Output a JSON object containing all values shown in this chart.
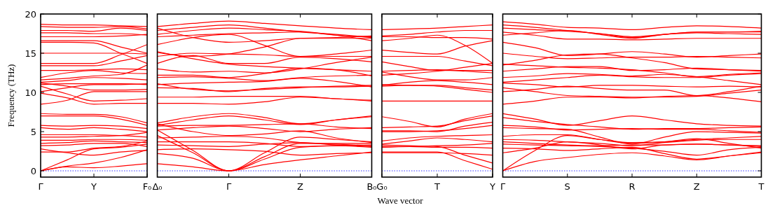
{
  "chart_data": [
    {
      "type": "line",
      "ylabel": "Frequency (THz)",
      "ylim": [
        -0.8,
        20
      ],
      "yticks": [
        0,
        5,
        10,
        15,
        20
      ],
      "categories": [
        "Γ",
        null,
        "Y",
        null,
        "F₀"
      ],
      "ref_lines": [
        {
          "axis": "y",
          "value": 0,
          "color": "#0000ff",
          "line_style": "dotted"
        }
      ],
      "series": [
        {
          "color": "#ff0000",
          "values": [
            18.7,
            18.6,
            18.6,
            18.5,
            18.4
          ]
        },
        {
          "color": "#ff0000",
          "values": [
            18.4,
            18.3,
            18.3,
            18.4,
            18.1
          ]
        },
        {
          "color": "#ff0000",
          "values": [
            17.9,
            17.9,
            17.8,
            18.2,
            17.9
          ]
        },
        {
          "color": "#ff0000",
          "values": [
            17.6,
            17.6,
            17.5,
            17.5,
            17.3
          ]
        },
        {
          "color": "#ff0000",
          "values": [
            17.1,
            17.1,
            17.1,
            17.2,
            17.4
          ]
        },
        {
          "color": "#ff0000",
          "values": [
            16.6,
            16.6,
            16.6,
            15.8,
            15.0
          ]
        },
        {
          "color": "#ff0000",
          "values": [
            16.4,
            16.4,
            16.3,
            15.0,
            13.7
          ]
        },
        {
          "color": "#ff0000",
          "values": [
            15.0,
            15.0,
            15.0,
            15.0,
            14.9
          ]
        },
        {
          "color": "#ff0000",
          "values": [
            13.7,
            13.7,
            13.7,
            14.8,
            16.1
          ]
        },
        {
          "color": "#ff0000",
          "values": [
            13.4,
            13.4,
            13.4,
            14.0,
            14.7
          ]
        },
        {
          "color": "#ff0000",
          "values": [
            12.8,
            12.8,
            12.9,
            13.0,
            12.9
          ]
        },
        {
          "color": "#ff0000",
          "values": [
            11.9,
            12.5,
            12.8,
            12.5,
            12.4
          ]
        },
        {
          "color": "#ff0000",
          "values": [
            11.6,
            11.8,
            12.1,
            12.3,
            13.5
          ]
        },
        {
          "color": "#ff0000",
          "values": [
            11.3,
            11.5,
            11.9,
            11.8,
            11.6
          ]
        },
        {
          "color": "#ff0000",
          "values": [
            11.0,
            11.1,
            11.1,
            11.1,
            11.0
          ]
        },
        {
          "color": "#ff0000",
          "values": [
            11.2,
            10.8,
            10.3,
            10.3,
            10.4
          ]
        },
        {
          "color": "#ff0000",
          "values": [
            10.1,
            10.6,
            11.0,
            11.0,
            11.1
          ]
        },
        {
          "color": "#ff0000",
          "values": [
            10.8,
            9.8,
            8.9,
            9.0,
            9.2
          ]
        },
        {
          "color": "#ff0000",
          "values": [
            8.5,
            9.0,
            10.1,
            10.1,
            10.1
          ]
        },
        {
          "color": "#ff0000",
          "values": [
            9.9,
            9.3,
            8.5,
            8.6,
            8.6
          ]
        },
        {
          "color": "#ff0000",
          "values": [
            7.3,
            7.2,
            7.2,
            6.9,
            6.1
          ]
        },
        {
          "color": "#ff0000",
          "values": [
            7.0,
            7.0,
            7.0,
            6.6,
            5.8
          ]
        },
        {
          "color": "#ff0000",
          "values": [
            5.8,
            5.7,
            5.8,
            5.7,
            5.4
          ]
        },
        {
          "color": "#ff0000",
          "values": [
            5.5,
            5.3,
            5.5,
            5.3,
            5.0
          ]
        },
        {
          "color": "#ff0000",
          "values": [
            4.6,
            4.6,
            4.6,
            4.5,
            4.3
          ]
        },
        {
          "color": "#ff0000",
          "values": [
            4.3,
            4.3,
            4.4,
            4.5,
            4.9
          ]
        },
        {
          "color": "#ff0000",
          "values": [
            3.9,
            3.9,
            4.0,
            4.0,
            3.9
          ]
        },
        {
          "color": "#ff0000",
          "values": [
            3.5,
            3.6,
            3.8,
            3.7,
            3.6
          ]
        },
        {
          "color": "#ff0000",
          "values": [
            3.2,
            3.3,
            3.5,
            3.5,
            3.1
          ]
        },
        {
          "color": "#ff0000",
          "values": [
            2.8,
            2.3,
            2.0,
            2.4,
            2.6
          ]
        },
        {
          "color": "#ff0000",
          "values": [
            2.4,
            2.4,
            2.9,
            3.1,
            3.8
          ]
        },
        {
          "color": "#ff0000",
          "values": [
            0,
            1.4,
            2.8,
            3.0,
            3.4
          ]
        },
        {
          "color": "#ff0000",
          "values": [
            0,
            0.6,
            1.0,
            1.7,
            2.7
          ]
        },
        {
          "color": "#ff0000",
          "values": [
            0,
            0.5,
            0.4,
            0.6,
            0.9
          ]
        }
      ]
    },
    {
      "type": "line",
      "tick_labels": "x",
      "ylim": [
        -0.8,
        20
      ],
      "categories": [
        "Δ₀",
        null,
        "Γ",
        null,
        "Z",
        null,
        "B₀"
      ],
      "ref_lines": [
        {
          "axis": "y",
          "value": 0,
          "color": "#0000ff",
          "line_style": "dotted"
        }
      ],
      "series": [
        {
          "color": "#ff0000",
          "values": [
            18.4,
            18.8,
            19.1,
            18.8,
            18.5,
            18.2,
            18.0
          ]
        },
        {
          "color": "#ff0000",
          "values": [
            17.9,
            18.3,
            18.6,
            18.2,
            17.7,
            17.4,
            17.0
          ]
        },
        {
          "color": "#ff0000",
          "values": [
            17.4,
            17.9,
            18.2,
            18.0,
            17.8,
            17.3,
            16.6
          ]
        },
        {
          "color": "#ff0000",
          "values": [
            17.1,
            17.3,
            17.5,
            17.6,
            17.7,
            17.3,
            17.1
          ]
        },
        {
          "color": "#ff0000",
          "values": [
            18.2,
            17.0,
            16.4,
            16.6,
            16.9,
            16.9,
            16.9
          ]
        },
        {
          "color": "#ff0000",
          "values": [
            16.1,
            17.0,
            17.4,
            16.0,
            14.6,
            14.9,
            15.4
          ]
        },
        {
          "color": "#ff0000",
          "values": [
            15.1,
            14.6,
            14.9,
            15.8,
            16.9,
            17.0,
            17.2
          ]
        },
        {
          "color": "#ff0000",
          "values": [
            14.6,
            15.0,
            14.9,
            14.8,
            14.6,
            14.6,
            14.6
          ]
        },
        {
          "color": "#ff0000",
          "values": [
            13.7,
            14.7,
            13.7,
            13.7,
            14.5,
            14.3,
            13.9
          ]
        },
        {
          "color": "#ff0000",
          "values": [
            15.2,
            14.3,
            13.6,
            13.3,
            13.1,
            12.9,
            12.7
          ]
        },
        {
          "color": "#ff0000",
          "values": [
            13.0,
            12.6,
            12.7,
            12.5,
            13.0,
            13.8,
            14.5
          ]
        },
        {
          "color": "#ff0000",
          "values": [
            12.2,
            12.2,
            11.9,
            12.4,
            13.1,
            12.9,
            12.1
          ]
        },
        {
          "color": "#ff0000",
          "values": [
            11.9,
            12.0,
            11.8,
            11.5,
            11.9,
            12.1,
            12.2
          ]
        },
        {
          "color": "#ff0000",
          "values": [
            11.0,
            11.2,
            11.3,
            11.4,
            11.8,
            11.4,
            10.7
          ]
        },
        {
          "color": "#ff0000",
          "values": [
            10.6,
            10.5,
            10.1,
            10.5,
            10.7,
            10.7,
            10.8
          ]
        },
        {
          "color": "#ff0000",
          "values": [
            11.1,
            10.4,
            10.2,
            10.4,
            10.6,
            10.8,
            10.9
          ]
        },
        {
          "color": "#ff0000",
          "values": [
            9.4,
            9.4,
            9.5,
            9.5,
            9.5,
            9.2,
            9.0
          ]
        },
        {
          "color": "#ff0000",
          "values": [
            8.6,
            8.6,
            8.5,
            8.8,
            9.4,
            9.2,
            8.9
          ]
        },
        {
          "color": "#ff0000",
          "values": [
            6.1,
            6.9,
            7.3,
            6.8,
            6.0,
            6.5,
            6.9
          ]
        },
        {
          "color": "#ff0000",
          "values": [
            5.8,
            6.5,
            7.0,
            6.5,
            5.9,
            6.5,
            7.0
          ]
        },
        {
          "color": "#ff0000",
          "values": [
            5.7,
            5.8,
            5.8,
            5.9,
            6.0,
            5.6,
            5.4
          ]
        },
        {
          "color": "#ff0000",
          "values": [
            5.2,
            5.5,
            5.7,
            5.4,
            5.0,
            5.3,
            5.5
          ]
        },
        {
          "color": "#ff0000",
          "values": [
            6.0,
            5.0,
            4.5,
            4.7,
            5.1,
            4.2,
            3.6
          ]
        },
        {
          "color": "#ff0000",
          "values": [
            4.2,
            4.3,
            4.4,
            4.2,
            3.6,
            3.4,
            3.2
          ]
        },
        {
          "color": "#ff0000",
          "values": [
            3.7,
            3.7,
            3.7,
            3.5,
            3.1,
            3.2,
            3.3
          ]
        },
        {
          "color": "#ff0000",
          "values": [
            3.3,
            3.2,
            3.1,
            3.4,
            3.6,
            3.3,
            3.1
          ]
        },
        {
          "color": "#ff0000",
          "values": [
            2.7,
            2.8,
            2.7,
            2.5,
            2.0,
            2.2,
            2.3
          ]
        },
        {
          "color": "#ff0000",
          "values": [
            2.2,
            1.6,
            0,
            0.8,
            1.4,
            1.9,
            2.4
          ]
        },
        {
          "color": "#ff0000",
          "values": [
            4.5,
            2.3,
            0,
            1.5,
            3.0,
            3.2,
            3.0
          ]
        },
        {
          "color": "#ff0000",
          "values": [
            0.9,
            0.5,
            0,
            1.8,
            3.5,
            3.5,
            3.5
          ]
        },
        {
          "color": "#ff0000",
          "values": [
            5.2,
            2.6,
            0,
            2.3,
            4.3,
            4.0,
            3.7
          ]
        }
      ]
    },
    {
      "type": "line",
      "tick_labels": "x",
      "xlabel": "Wave vector",
      "ylim": [
        -0.8,
        20
      ],
      "categories": [
        "G₀",
        null,
        "T",
        null,
        "Y"
      ],
      "ref_lines": [
        {
          "axis": "y",
          "value": 0,
          "color": "#0000ff",
          "line_style": "dotted"
        }
      ],
      "series": [
        {
          "color": "#ff0000",
          "values": [
            18.0,
            18.1,
            18.2,
            18.4,
            18.6
          ]
        },
        {
          "color": "#ff0000",
          "values": [
            17.2,
            17.4,
            17.7,
            17.9,
            17.9
          ]
        },
        {
          "color": "#ff0000",
          "values": [
            16.6,
            16.9,
            17.3,
            16.0,
            13.7
          ]
        },
        {
          "color": "#ff0000",
          "values": [
            17.1,
            17.1,
            17.0,
            17.0,
            16.8
          ]
        },
        {
          "color": "#ff0000",
          "values": [
            15.4,
            15.1,
            14.9,
            15.9,
            16.6
          ]
        },
        {
          "color": "#ff0000",
          "values": [
            14.6,
            14.6,
            14.6,
            14.0,
            13.4
          ]
        },
        {
          "color": "#ff0000",
          "values": [
            13.9,
            13.3,
            12.8,
            12.8,
            12.8
          ]
        },
        {
          "color": "#ff0000",
          "values": [
            12.7,
            12.8,
            12.9,
            12.7,
            12.5
          ]
        },
        {
          "color": "#ff0000",
          "values": [
            12.2,
            12.4,
            12.7,
            13.2,
            13.7
          ]
        },
        {
          "color": "#ff0000",
          "values": [
            12.6,
            12.0,
            11.6,
            11.6,
            11.9
          ]
        },
        {
          "color": "#ff0000",
          "values": [
            10.9,
            11.3,
            11.5,
            11.3,
            11.0
          ]
        },
        {
          "color": "#ff0000",
          "values": [
            10.8,
            10.9,
            10.9,
            10.6,
            10.3
          ]
        },
        {
          "color": "#ff0000",
          "values": [
            11.0,
            10.9,
            10.8,
            10.4,
            10.0
          ]
        },
        {
          "color": "#ff0000",
          "values": [
            8.9,
            8.9,
            8.9,
            8.9,
            8.9
          ]
        },
        {
          "color": "#ff0000",
          "values": [
            6.9,
            6.3,
            5.6,
            6.6,
            7.3
          ]
        },
        {
          "color": "#ff0000",
          "values": [
            5.5,
            5.6,
            5.7,
            6.4,
            7.0
          ]
        },
        {
          "color": "#ff0000",
          "values": [
            5.1,
            5.1,
            5.0,
            5.7,
            6.2
          ]
        },
        {
          "color": "#ff0000",
          "values": [
            5.0,
            5.0,
            5.1,
            5.4,
            5.8
          ]
        },
        {
          "color": "#ff0000",
          "values": [
            3.8,
            4.2,
            4.4,
            4.5,
            4.6
          ]
        },
        {
          "color": "#ff0000",
          "values": [
            3.4,
            3.8,
            4.2,
            4.0,
            3.7
          ]
        },
        {
          "color": "#ff0000",
          "values": [
            3.1,
            3.1,
            3.2,
            3.3,
            3.5
          ]
        },
        {
          "color": "#ff0000",
          "values": [
            3.0,
            3.1,
            3.0,
            3.0,
            2.9
          ]
        },
        {
          "color": "#ff0000",
          "values": [
            2.3,
            2.3,
            2.3,
            2.2,
            2.0
          ]
        },
        {
          "color": "#ff0000",
          "values": [
            3.3,
            3.2,
            3.1,
            2.0,
            1.0
          ]
        },
        {
          "color": "#ff0000",
          "values": [
            2.4,
            2.4,
            2.4,
            1.3,
            0.2
          ]
        }
      ]
    },
    {
      "type": "line",
      "tick_labels": "x",
      "ylim": [
        -0.8,
        20
      ],
      "yticks": [
        {
          "value": 0,
          "label": null
        },
        {
          "value": 5,
          "label": null
        },
        {
          "value": 10,
          "label": null
        },
        {
          "value": 15,
          "label": null
        },
        {
          "value": 20,
          "label": null
        }
      ],
      "categories": [
        "Γ",
        null,
        "S",
        null,
        "R",
        null,
        "Z",
        null,
        "T"
      ],
      "ref_lines": [
        {
          "axis": "y",
          "value": 0,
          "color": "#0000ff",
          "line_style": "dotted"
        }
      ],
      "series": [
        {
          "color": "#ff0000",
          "values": [
            19.0,
            18.7,
            18.3,
            18.2,
            18.0,
            18.3,
            18.5,
            18.4,
            18.2
          ]
        },
        {
          "color": "#ff0000",
          "values": [
            18.6,
            18.3,
            17.9,
            17.5,
            17.0,
            17.4,
            17.7,
            17.7,
            17.8
          ]
        },
        {
          "color": "#ff0000",
          "values": [
            18.2,
            18.0,
            17.8,
            17.5,
            17.1,
            17.4,
            17.6,
            17.5,
            17.4
          ]
        },
        {
          "color": "#ff0000",
          "values": [
            17.7,
            17.3,
            16.8,
            16.8,
            16.7,
            16.8,
            16.9,
            16.9,
            16.9
          ]
        },
        {
          "color": "#ff0000",
          "values": [
            17.3,
            17.6,
            17.9,
            17.4,
            16.9,
            17.4,
            17.7,
            17.7,
            17.7
          ]
        },
        {
          "color": "#ff0000",
          "values": [
            16.4,
            15.7,
            14.7,
            14.9,
            15.2,
            14.9,
            14.5,
            14.7,
            14.9
          ]
        },
        {
          "color": "#ff0000",
          "values": [
            15.0,
            14.6,
            14.3,
            14.4,
            14.5,
            14.5,
            14.6,
            14.5,
            14.4
          ]
        },
        {
          "color": "#ff0000",
          "values": [
            13.5,
            14.1,
            14.8,
            14.9,
            14.4,
            13.8,
            13.0,
            12.9,
            12.8
          ]
        },
        {
          "color": "#ff0000",
          "values": [
            12.7,
            13.0,
            13.3,
            13.3,
            12.8,
            12.9,
            13.1,
            12.9,
            12.7
          ]
        },
        {
          "color": "#ff0000",
          "values": [
            13.6,
            13.4,
            13.2,
            13.1,
            12.9,
            12.5,
            12.0,
            12.3,
            12.5
          ]
        },
        {
          "color": "#ff0000",
          "values": [
            11.9,
            12.1,
            12.4,
            12.3,
            12.1,
            12.3,
            12.0,
            11.5,
            11.0
          ]
        },
        {
          "color": "#ff0000",
          "values": [
            11.3,
            11.6,
            11.9,
            12.2,
            12.0,
            11.9,
            11.9,
            12.2,
            12.4
          ]
        },
        {
          "color": "#ff0000",
          "values": [
            11.2,
            11.0,
            10.7,
            10.9,
            10.9,
            10.8,
            10.7,
            10.8,
            10.7
          ]
        },
        {
          "color": "#ff0000",
          "values": [
            10.1,
            10.4,
            10.8,
            10.5,
            10.3,
            10.3,
            9.6,
            10.1,
            10.8
          ]
        },
        {
          "color": "#ff0000",
          "values": [
            10.6,
            10.1,
            9.6,
            9.5,
            9.4,
            9.4,
            9.5,
            9.9,
            10.3
          ]
        },
        {
          "color": "#ff0000",
          "values": [
            8.5,
            8.9,
            9.4,
            9.4,
            9.3,
            9.5,
            9.6,
            9.3,
            8.8
          ]
        },
        {
          "color": "#ff0000",
          "values": [
            7.3,
            6.6,
            5.8,
            6.4,
            7.0,
            6.5,
            6.0,
            5.8,
            5.7
          ]
        },
        {
          "color": "#ff0000",
          "values": [
            6.8,
            6.3,
            5.9,
            5.6,
            5.3,
            5.4,
            5.4,
            5.5,
            5.6
          ]
        },
        {
          "color": "#ff0000",
          "values": [
            5.8,
            5.6,
            5.2,
            5.3,
            5.4,
            5.3,
            5.3,
            5.1,
            4.9
          ]
        },
        {
          "color": "#ff0000",
          "values": [
            5.5,
            5.4,
            5.3,
            4.3,
            3.4,
            4.3,
            5.0,
            4.9,
            4.8
          ]
        },
        {
          "color": "#ff0000",
          "values": [
            4.4,
            4.6,
            4.6,
            4.0,
            3.5,
            3.7,
            4.0,
            4.2,
            4.4
          ]
        },
        {
          "color": "#ff0000",
          "values": [
            4.0,
            3.9,
            3.7,
            3.5,
            3.2,
            3.6,
            3.9,
            4.0,
            4.0
          ]
        },
        {
          "color": "#ff0000",
          "values": [
            3.7,
            3.5,
            3.3,
            3.2,
            3.3,
            3.3,
            3.4,
            3.3,
            3.1
          ]
        },
        {
          "color": "#ff0000",
          "values": [
            3.4,
            3.3,
            3.2,
            3.1,
            2.9,
            2.5,
            2.0,
            2.7,
            3.0
          ]
        },
        {
          "color": "#ff0000",
          "values": [
            2.9,
            2.8,
            2.6,
            2.8,
            3.0,
            2.2,
            1.5,
            1.9,
            2.3
          ]
        },
        {
          "color": "#ff0000",
          "values": [
            2.3,
            2.9,
            3.7,
            3.3,
            2.8,
            3.3,
            3.4,
            3.3,
            3.2
          ]
        },
        {
          "color": "#ff0000",
          "values": [
            0,
            1.2,
            1.7,
            2.1,
            2.3,
            1.9,
            1.4,
            1.9,
            2.4
          ]
        },
        {
          "color": "#ff0000",
          "values": [
            0,
            2.6,
            4.5,
            4.0,
            3.6,
            3.7,
            4.1,
            3.5,
            2.9
          ]
        }
      ]
    }
  ]
}
